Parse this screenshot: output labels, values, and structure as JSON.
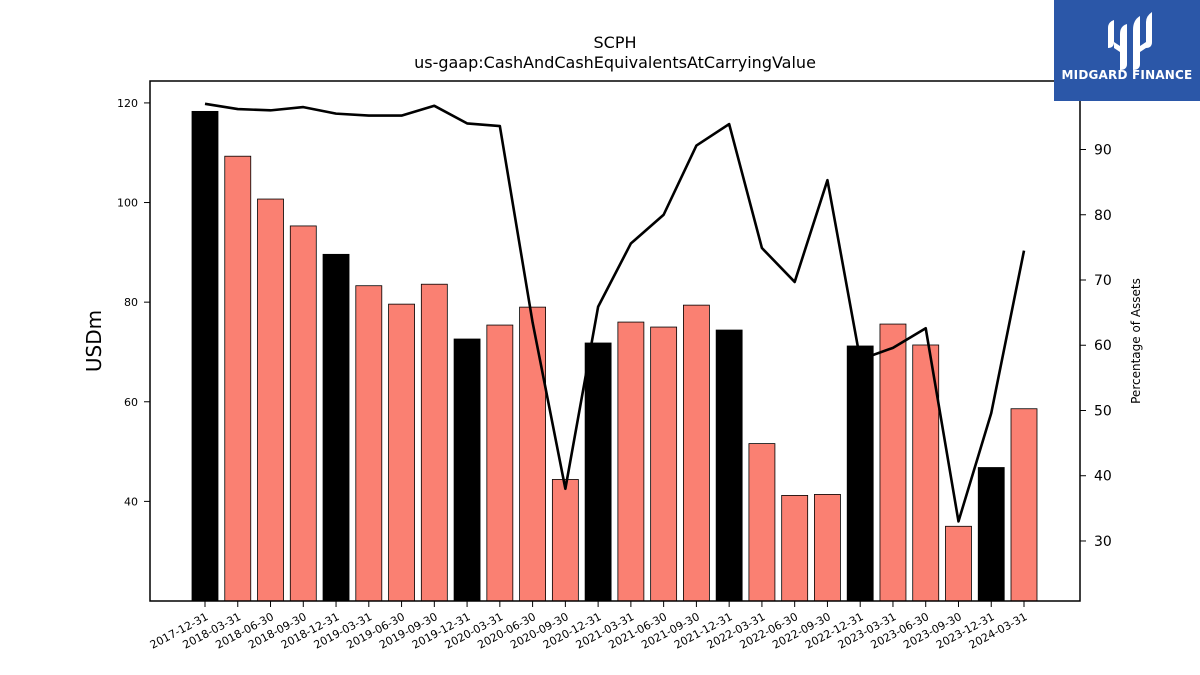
{
  "logo": {
    "text": "MIDGARD FINANCE"
  },
  "chart_data": {
    "type": "bar",
    "title": "SCPH",
    "subtitle": "us-gaap:CashAndCashEquivalentsAtCarryingValue",
    "ylabel": "USDm",
    "y2label": "Percentage of Assets",
    "ylim": [
      20,
      124.4
    ],
    "y2lim": [
      20.8,
      100.5
    ],
    "yticks": [
      40,
      60,
      80,
      100,
      120
    ],
    "y2ticks": [
      30,
      40,
      50,
      60,
      70,
      80,
      90
    ],
    "colors": {
      "annual": "#000000",
      "quarterly": "#fa8072",
      "line": "#000000"
    },
    "categories": [
      "2017-12-31",
      "2018-03-31",
      "2018-06-30",
      "2018-09-30",
      "2018-12-31",
      "2019-03-31",
      "2019-06-30",
      "2019-09-30",
      "2019-12-31",
      "2020-03-31",
      "2020-06-30",
      "2020-09-30",
      "2020-12-31",
      "2021-03-31",
      "2021-06-30",
      "2021-09-30",
      "2021-12-31",
      "2022-03-31",
      "2022-06-30",
      "2022-09-30",
      "2022-12-31",
      "2023-03-31",
      "2023-06-30",
      "2023-09-30",
      "2023-12-31",
      "2024-03-31"
    ],
    "series": [
      {
        "values": [
          118.3,
          109.3,
          100.7,
          95.3,
          89.6,
          83.3,
          79.6,
          83.6,
          72.6,
          75.4,
          79.0,
          44.4,
          71.8,
          76.0,
          75.0,
          79.4,
          74.4,
          51.6,
          41.2,
          41.4,
          71.2,
          75.6,
          71.4,
          35.0,
          46.8,
          58.6
        ],
        "kind": [
          "annual",
          "quarterly",
          "quarterly",
          "quarterly",
          "annual",
          "quarterly",
          "quarterly",
          "quarterly",
          "annual",
          "quarterly",
          "quarterly",
          "quarterly",
          "annual",
          "quarterly",
          "quarterly",
          "quarterly",
          "annual",
          "quarterly",
          "quarterly",
          "quarterly",
          "annual",
          "quarterly",
          "quarterly",
          "quarterly",
          "annual",
          "quarterly"
        ]
      },
      {
        "axis": "right",
        "type": "line",
        "values": [
          97.0,
          96.2,
          96.0,
          96.5,
          95.5,
          95.2,
          95.2,
          96.7,
          94.0,
          93.6,
          63.5,
          38.0,
          65.9,
          75.6,
          80.0,
          90.6,
          93.9,
          74.9,
          69.7,
          85.3,
          57.8,
          59.6,
          62.6,
          33.0,
          49.6,
          74.5
        ]
      }
    ]
  }
}
